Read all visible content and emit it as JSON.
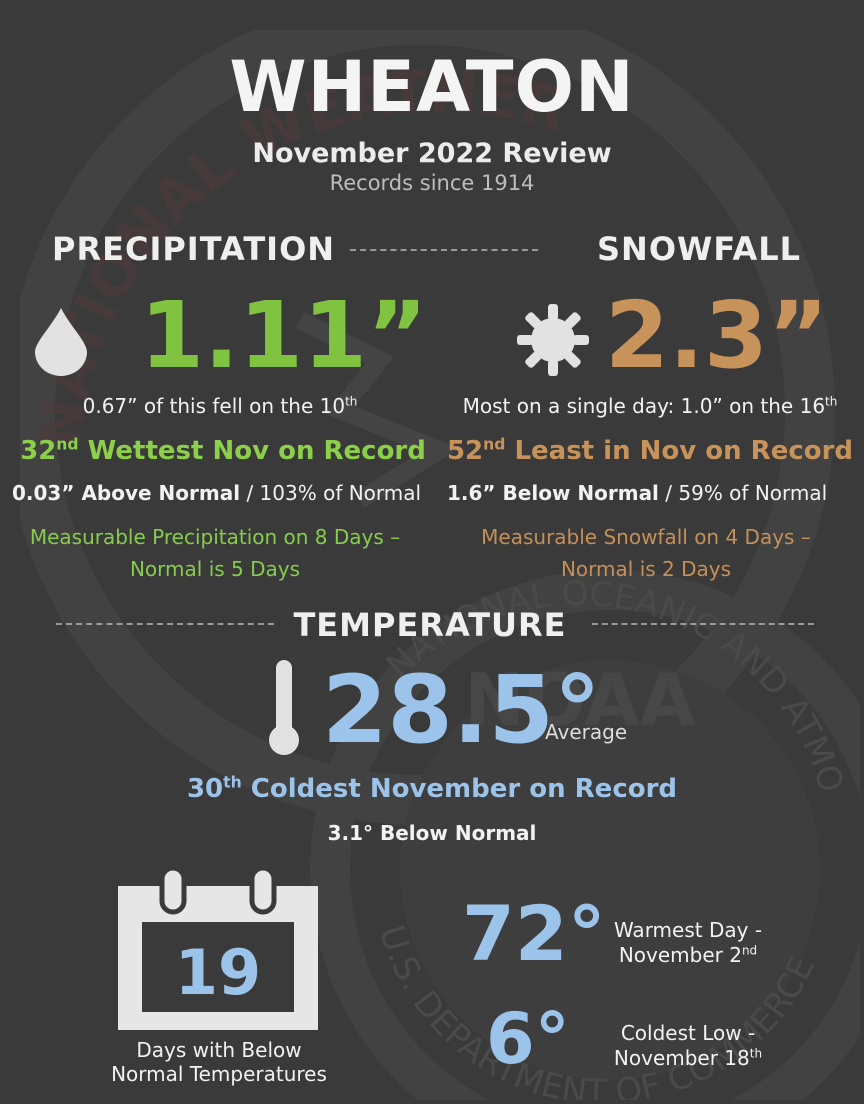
{
  "header": {
    "title": "WHEATON",
    "subtitle": "November 2022 Review",
    "records": "Records since 1914"
  },
  "precipitation": {
    "heading": "PRECIPITATION",
    "value": "1.11”",
    "fell_prefix": "0.67” of this fell on the 10",
    "fell_sup": "th",
    "rank_num": "32",
    "rank_sup": "nd",
    "rank_text": "Wettest Nov on Record",
    "normal_bold": "0.03” Above Normal",
    "normal_rest": " / 103% of Normal",
    "days_line1": "Measurable Precipitation on 8 Days –",
    "days_line2": "Normal is 5 Days"
  },
  "snowfall": {
    "heading": "SNOWFALL",
    "value": "2.3”",
    "most_prefix": "Most on a single day: 1.0” on the 16",
    "most_sup": "th",
    "rank_num": "52",
    "rank_sup": "nd",
    "rank_text": "Least in Nov on Record",
    "normal_bold": "1.6” Below Normal",
    "normal_rest": " / 59% of Normal",
    "days_line1": "Measurable Snowfall on 4 Days –",
    "days_line2": "Normal is 2 Days"
  },
  "temperature": {
    "heading": "TEMPERATURE",
    "value": "28.5°",
    "avg_label": "Average",
    "rank_num": "30",
    "rank_sup": "th",
    "rank_text": "Coldest November on Record",
    "normal": "3.1° Below Normal",
    "calendar_number": "19",
    "calendar_label_1": "Days with Below",
    "calendar_label_2": "Normal Temperatures",
    "warm_value": "72°",
    "warm_label_1": "Warmest Day -",
    "warm_label_2_prefix": "November 2",
    "warm_label_2_sup": "nd",
    "cold_value": "6°",
    "cold_label_1": "Coldest Low -",
    "cold_label_2_prefix": "November 18",
    "cold_label_2_sup": "th"
  },
  "colors": {
    "background": "#3a3a3a",
    "precip_green": "#80c341",
    "snow_orange": "#c8935a",
    "temp_blue": "#9cc4ea"
  },
  "icons": [
    "raindrop-icon",
    "snowflake-icon",
    "thermometer-icon",
    "calendar-icon",
    "noaa-seal-watermark"
  ],
  "watermark": {
    "seal_top": "NATIONAL WEATHER SERVICE",
    "seal_agency": "NATIONAL OCEANIC AND ATMOSPHERIC ADMINISTRATION",
    "seal_dept": "U.S. DEPARTMENT OF COMMERCE",
    "seal_logo": "NOAA"
  }
}
